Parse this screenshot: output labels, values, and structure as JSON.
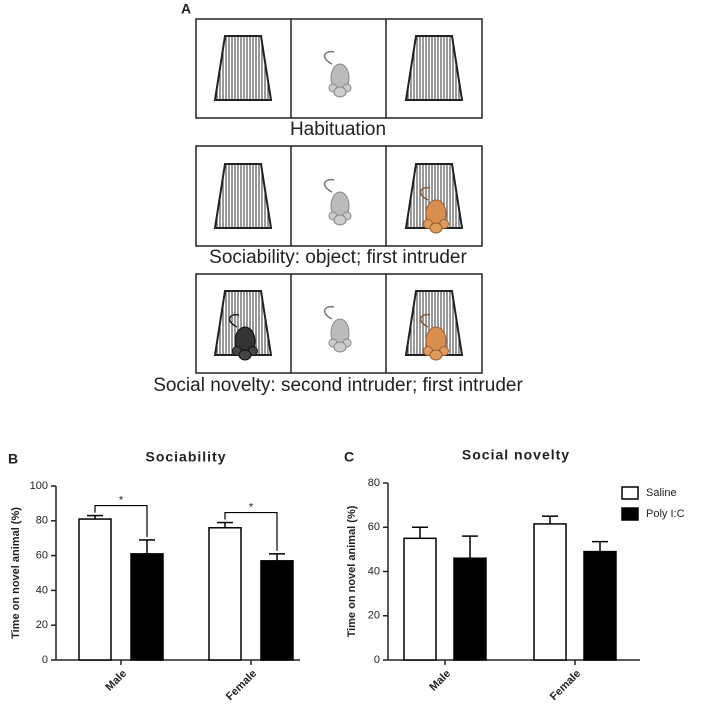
{
  "diagram": {
    "label": "A",
    "captions": [
      "Habituation",
      "Sociability: object; first intruder",
      "Social novelty: second intruder; first intruder"
    ]
  },
  "chart_data": [
    {
      "type": "bar",
      "panel_label": "B",
      "title": "Sociability",
      "y_label": "Time on novel animal (%)",
      "categories": [
        "Male",
        "Female"
      ],
      "series": [
        {
          "color": "#ffffff",
          "values": [
            81,
            76
          ],
          "errors": [
            2,
            3
          ]
        },
        {
          "color": "#000000",
          "values": [
            61,
            57
          ],
          "errors": [
            8,
            4
          ]
        }
      ],
      "significance": [
        "*",
        "*"
      ],
      "ylim": [
        0,
        100
      ],
      "yticks": [
        0,
        20,
        40,
        60,
        80,
        100
      ]
    },
    {
      "type": "bar",
      "panel_label": "C",
      "title": "Social novelty",
      "y_label": "Time on novel animal (%)",
      "categories": [
        "Male",
        "Female"
      ],
      "series": [
        {
          "name": "Saline",
          "color": "#ffffff",
          "values": [
            55,
            61.5
          ],
          "errors": [
            5,
            3.5
          ]
        },
        {
          "name": "Poly I:C",
          "color": "#000000",
          "values": [
            46,
            49
          ],
          "errors": [
            10,
            4.5
          ]
        }
      ],
      "legend": "top-right",
      "ylim": [
        0,
        80
      ],
      "yticks": [
        0,
        20,
        40,
        60,
        80
      ]
    }
  ]
}
